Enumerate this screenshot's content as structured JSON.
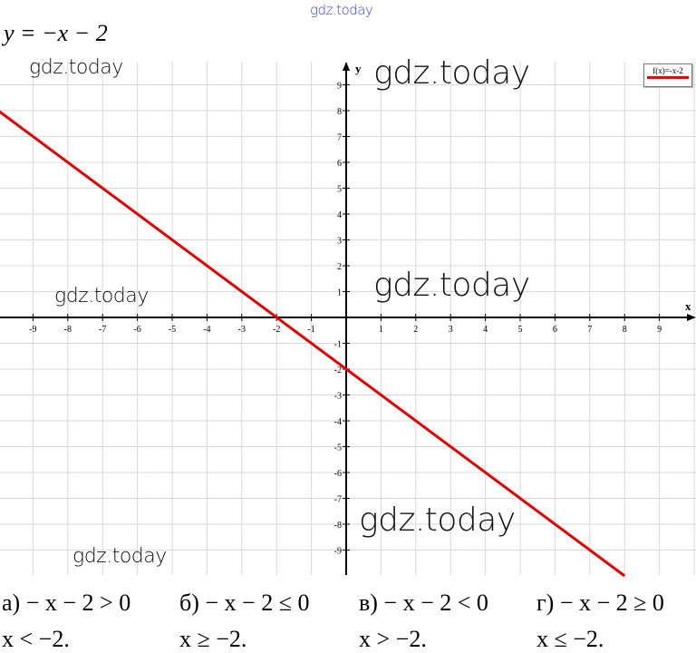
{
  "header": {
    "title": "y = −x − 2",
    "watermark_top": "gdz.today"
  },
  "watermarks": [
    "gdz.today",
    "gdz.today",
    "gdz.today",
    "gdz.today",
    "gdz.today",
    "gdz.today"
  ],
  "chart_data": {
    "type": "line",
    "xlabel": "x",
    "ylabel": "y",
    "xlim": [
      -10,
      10
    ],
    "ylim": [
      -10,
      10
    ],
    "x_ticks": [
      -9,
      -8,
      -7,
      -6,
      -5,
      -4,
      -3,
      -2,
      -1,
      1,
      2,
      3,
      4,
      5,
      6,
      7,
      8,
      9
    ],
    "y_ticks": [
      -9,
      -8,
      -7,
      -6,
      -5,
      -4,
      -3,
      -2,
      -1,
      1,
      2,
      3,
      4,
      5,
      6,
      7,
      8,
      9
    ],
    "grid": true,
    "legend_placement": "top-right",
    "series": [
      {
        "name": "f(x)=-x-2",
        "color": "#e00000",
        "x": [
          -10,
          8
        ],
        "y": [
          8,
          -10
        ]
      }
    ]
  },
  "inequalities": [
    {
      "label": "а) − x − 2 > 0",
      "solution": "x < −2."
    },
    {
      "label": "б) − x − 2 ≤ 0",
      "solution": "x ≥ −2."
    },
    {
      "label": "в) − x − 2 < 0",
      "solution": "x > −2."
    },
    {
      "label": "г) − x − 2 ≥ 0",
      "solution": "x ≤ −2."
    }
  ]
}
